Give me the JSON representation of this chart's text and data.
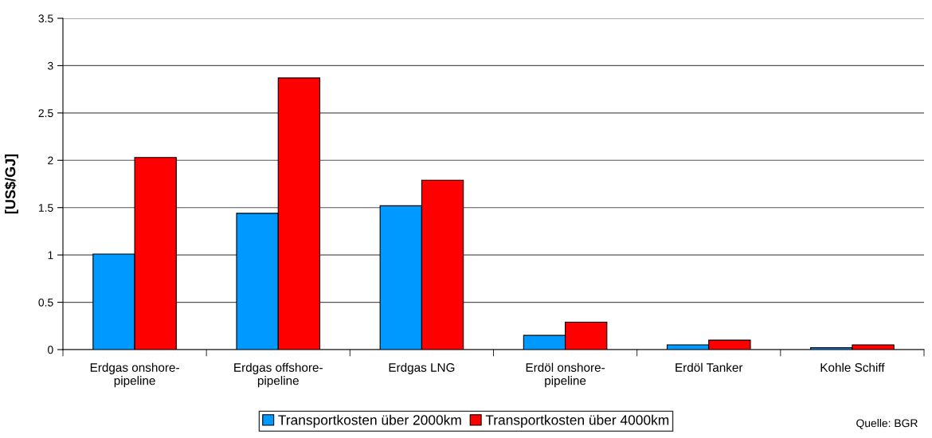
{
  "chart_data": {
    "type": "bar",
    "ylabel": "[US$/GJ]",
    "categories": [
      "Erdgas onshore-\npipeline",
      "Erdgas offshore-\npipeline",
      "Erdgas LNG",
      "Erdöl onshore-\npipeline",
      "Erdöl Tanker",
      "Kohle Schiff"
    ],
    "series": [
      {
        "name": "Transportkosten über 2000km",
        "color": "#0099ff",
        "values": [
          1.01,
          1.44,
          1.52,
          0.15,
          0.05,
          0.02
        ]
      },
      {
        "name": "Transportkosten über 4000km",
        "color": "#ff0000",
        "values": [
          2.03,
          2.87,
          1.79,
          0.29,
          0.1,
          0.05
        ]
      }
    ],
    "ylim": [
      0,
      3.5
    ],
    "yticks": [
      0,
      0.5,
      1,
      1.5,
      2,
      2.5,
      3,
      3.5
    ],
    "grid": "y",
    "legend": "bottom",
    "annotations": [
      "Quelle: BGR"
    ]
  }
}
